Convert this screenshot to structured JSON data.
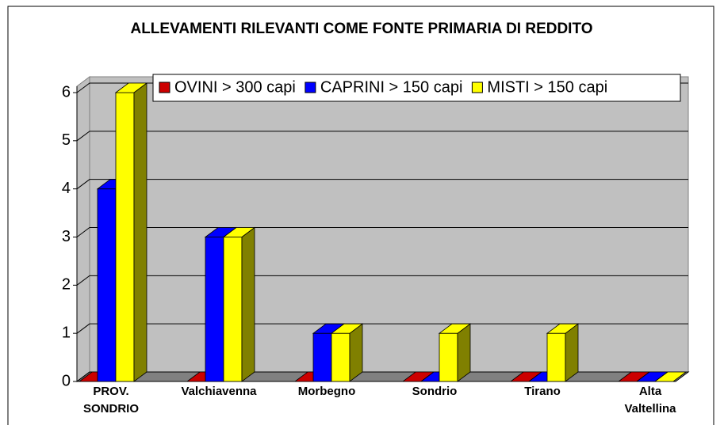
{
  "chart_data": {
    "type": "bar3d",
    "title": "ALLEVAMENTI RILEVANTI COME FONTE PRIMARIA DI REDDITO",
    "categories": [
      "PROV. SONDRIO",
      "Valchiavenna",
      "Morbegno",
      "Sondrio",
      "Tirano",
      "Alta Valtellina"
    ],
    "series": [
      {
        "name": "OVINI > 300 capi",
        "color": "#cc0000",
        "values": [
          0,
          0,
          0,
          0,
          0,
          0
        ]
      },
      {
        "name": "CAPRINI > 150 capi",
        "color": "#0000ff",
        "values": [
          4,
          3,
          1,
          0,
          0,
          0
        ]
      },
      {
        "name": "MISTI > 150 capi",
        "color": "#ffff00",
        "values": [
          6,
          3,
          1,
          1,
          1,
          0
        ]
      }
    ],
    "ylim": [
      0,
      6
    ],
    "yticks": [
      0,
      1,
      2,
      3,
      4,
      5,
      6
    ],
    "grid": true,
    "legend": "top"
  }
}
